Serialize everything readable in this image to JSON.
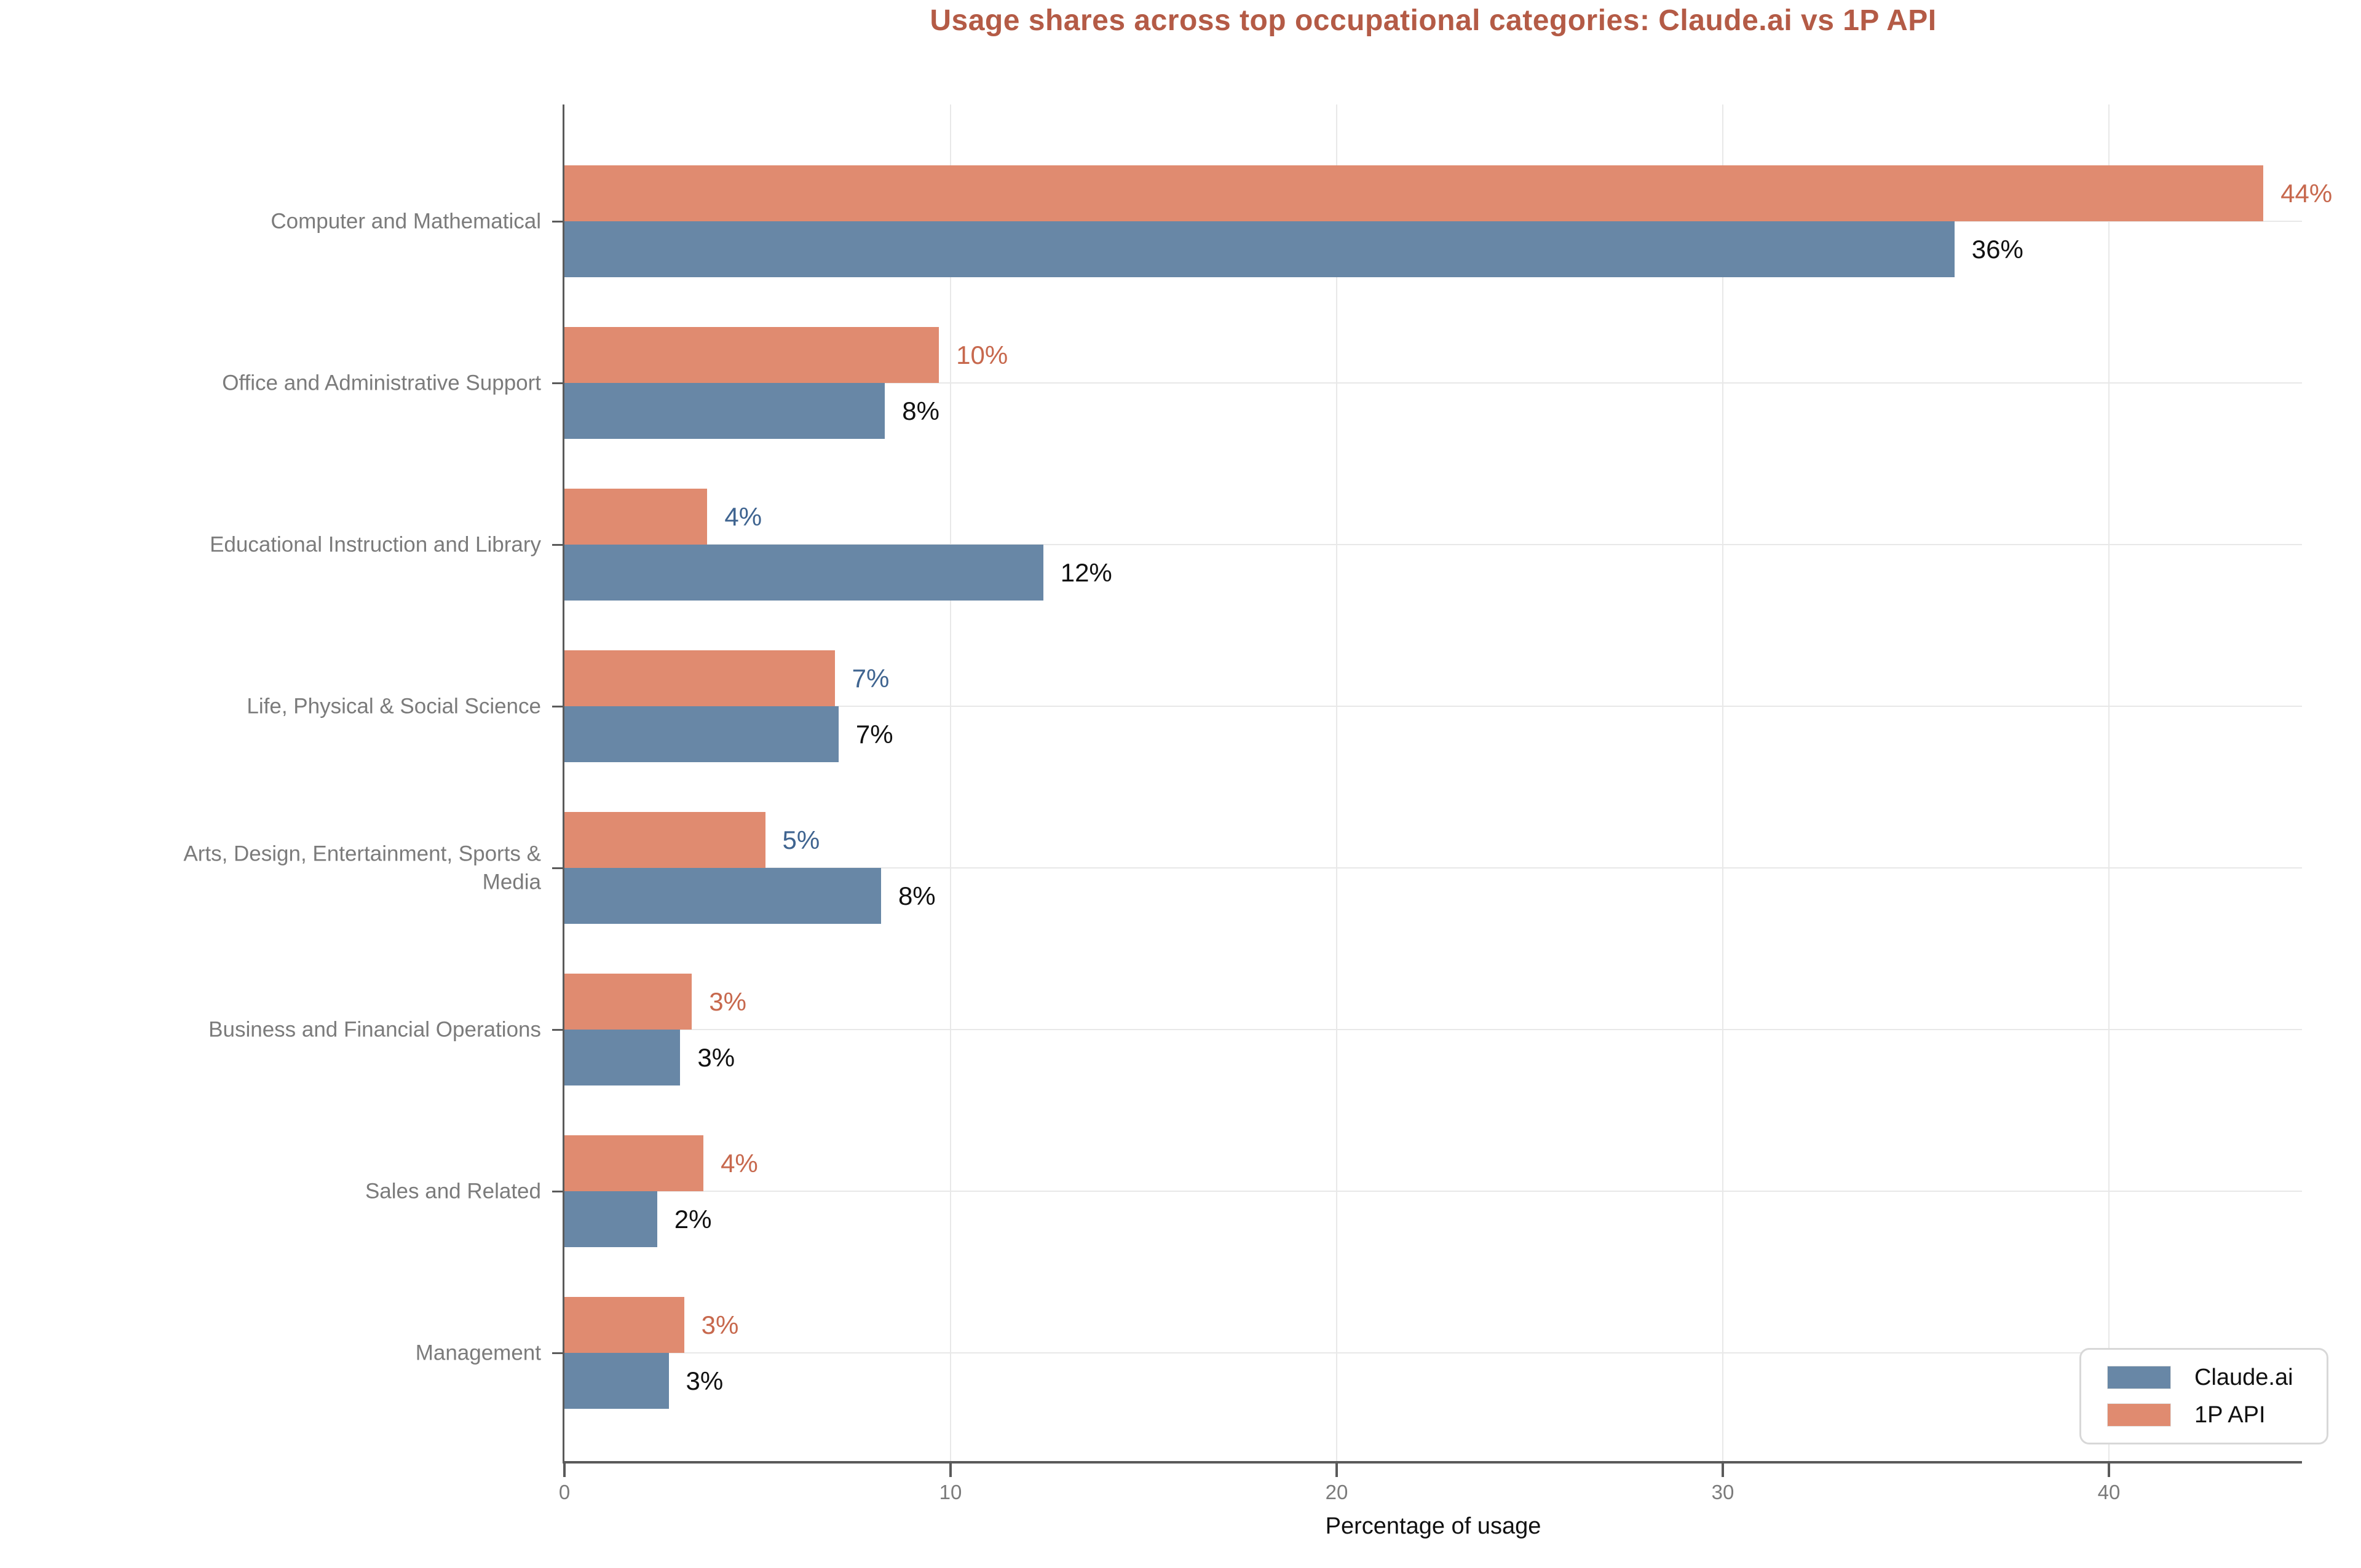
{
  "title": "Usage shares across top occupational categories: Claude.ai vs 1P API",
  "colors": {
    "title": "#B45B46",
    "claude_bar": "#6887A6",
    "api_bar": "#E08B70",
    "claude_value_label": "#111111",
    "api_value_label_orange": "#C7684D",
    "api_value_label_blue": "#3F6490",
    "axis_spine": "#5A5A5A",
    "gridline": "#E8E8E8",
    "tick_text": "#7B7B7B",
    "category_text": "#7B7B7B",
    "legend_border": "#D8D8D8"
  },
  "chart_data": {
    "type": "bar",
    "orientation": "horizontal",
    "title": "Usage shares across top occupational categories: Claude.ai vs 1P API",
    "xlabel": "Percentage of usage",
    "xlim": [
      0,
      45
    ],
    "x_ticks": [
      0,
      10,
      20,
      30,
      40
    ],
    "grid": true,
    "legend_position": "lower-right",
    "categories": [
      "Computer and Mathematical",
      "Office and Administrative Support",
      "Educational Instruction and Library",
      "Life, Physical & Social Science",
      "Arts, Design, Entertainment, Sports &\nMedia",
      "Business and Financial Operations",
      "Sales and Related",
      "Management"
    ],
    "series": [
      {
        "name": "1P API",
        "color": "#E08B70",
        "values": [
          44,
          9.7,
          3.7,
          7.0,
          5.2,
          3.3,
          3.6,
          3.1
        ],
        "labels": [
          "44%",
          "10%",
          "4%",
          "7%",
          "5%",
          "3%",
          "4%",
          "3%"
        ],
        "label_colors": [
          "#C7684D",
          "#C7684D",
          "#3F6490",
          "#3F6490",
          "#3F6490",
          "#C7684D",
          "#C7684D",
          "#C7684D"
        ]
      },
      {
        "name": "Claude.ai",
        "color": "#6887A6",
        "values": [
          36,
          8.3,
          12.4,
          7.1,
          8.2,
          3.0,
          2.4,
          2.7
        ],
        "labels": [
          "36%",
          "8%",
          "12%",
          "7%",
          "8%",
          "3%",
          "2%",
          "3%"
        ],
        "label_colors": [
          "#111111",
          "#111111",
          "#111111",
          "#111111",
          "#111111",
          "#111111",
          "#111111",
          "#111111"
        ]
      }
    ],
    "legend": [
      {
        "label": "Claude.ai",
        "color": "#6887A6"
      },
      {
        "label": "1P API",
        "color": "#E08B70"
      }
    ]
  }
}
